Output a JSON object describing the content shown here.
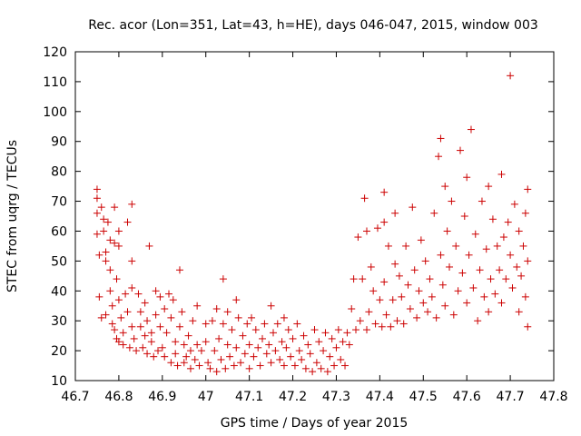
{
  "chart_data": {
    "type": "scatter",
    "title": "Rec. acor (Lon=351, Lat=43, h=HE), days 046-047, 2015, window 003",
    "xlabel": "GPS time / Days of year 2015",
    "ylabel": "STEC from uqrg / TECUs",
    "xlim": [
      46.7,
      47.8
    ],
    "ylim": [
      10,
      120
    ],
    "xticks": [
      "46.7",
      "46.8",
      "46.9",
      "47",
      "47.1",
      "47.2",
      "47.3",
      "47.4",
      "47.5",
      "47.6",
      "47.7",
      "47.8"
    ],
    "yticks": [
      "10",
      "20",
      "30",
      "40",
      "50",
      "60",
      "70",
      "80",
      "90",
      "100",
      "110",
      "120"
    ],
    "grid": false,
    "marker": "plus",
    "color": "#cc0000",
    "series": [
      {
        "points": [
          [
            46.75,
            74
          ],
          [
            46.75,
            71
          ],
          [
            46.75,
            66
          ],
          [
            46.75,
            59
          ],
          [
            46.755,
            52
          ],
          [
            46.755,
            38
          ],
          [
            46.76,
            31
          ],
          [
            46.76,
            68
          ],
          [
            46.765,
            64
          ],
          [
            46.765,
            60
          ],
          [
            46.77,
            53
          ],
          [
            46.77,
            50
          ],
          [
            46.77,
            32
          ],
          [
            46.775,
            63
          ],
          [
            46.78,
            57
          ],
          [
            46.78,
            47
          ],
          [
            46.78,
            40
          ],
          [
            46.785,
            35
          ],
          [
            46.785,
            29
          ],
          [
            46.79,
            68
          ],
          [
            46.79,
            56
          ],
          [
            46.79,
            27
          ],
          [
            46.795,
            44
          ],
          [
            46.795,
            24
          ],
          [
            46.8,
            60
          ],
          [
            46.8,
            55
          ],
          [
            46.8,
            37
          ],
          [
            46.8,
            23
          ],
          [
            46.805,
            31
          ],
          [
            46.81,
            26
          ],
          [
            46.81,
            22
          ],
          [
            46.815,
            39
          ],
          [
            46.82,
            63
          ],
          [
            46.82,
            33
          ],
          [
            46.825,
            21
          ],
          [
            46.83,
            69
          ],
          [
            46.83,
            50
          ],
          [
            46.83,
            41
          ],
          [
            46.83,
            28
          ],
          [
            46.835,
            24
          ],
          [
            46.84,
            20
          ],
          [
            46.845,
            39
          ],
          [
            46.85,
            33
          ],
          [
            46.85,
            28
          ],
          [
            46.855,
            21
          ],
          [
            46.86,
            36
          ],
          [
            46.86,
            25
          ],
          [
            46.865,
            30
          ],
          [
            46.865,
            19
          ],
          [
            46.87,
            55
          ],
          [
            46.875,
            26
          ],
          [
            46.875,
            23
          ],
          [
            46.88,
            18
          ],
          [
            46.885,
            40
          ],
          [
            46.885,
            32
          ],
          [
            46.89,
            20
          ],
          [
            46.895,
            38
          ],
          [
            46.895,
            28
          ],
          [
            46.9,
            21
          ],
          [
            46.905,
            34
          ],
          [
            46.905,
            18
          ],
          [
            46.91,
            26
          ],
          [
            46.915,
            39
          ],
          [
            46.92,
            31
          ],
          [
            46.92,
            16
          ],
          [
            46.925,
            37
          ],
          [
            46.93,
            23
          ],
          [
            46.93,
            19
          ],
          [
            46.935,
            15
          ],
          [
            46.94,
            47
          ],
          [
            46.94,
            28
          ],
          [
            46.945,
            33
          ],
          [
            46.95,
            22
          ],
          [
            46.95,
            16
          ],
          [
            46.955,
            18
          ],
          [
            46.96,
            25
          ],
          [
            46.965,
            20
          ],
          [
            46.965,
            14
          ],
          [
            46.97,
            30
          ],
          [
            46.975,
            17
          ],
          [
            46.98,
            35
          ],
          [
            46.98,
            22
          ],
          [
            46.985,
            15
          ],
          [
            46.99,
            20
          ],
          [
            47.0,
            29
          ],
          [
            47.0,
            23
          ],
          [
            47.005,
            16
          ],
          [
            47.01,
            14
          ],
          [
            47.015,
            30
          ],
          [
            47.02,
            20
          ],
          [
            47.025,
            34
          ],
          [
            47.025,
            13
          ],
          [
            47.03,
            24
          ],
          [
            47.035,
            17
          ],
          [
            47.04,
            29
          ],
          [
            47.04,
            44
          ],
          [
            47.045,
            14
          ],
          [
            47.05,
            33
          ],
          [
            47.05,
            22
          ],
          [
            47.055,
            18
          ],
          [
            47.06,
            27
          ],
          [
            47.065,
            15
          ],
          [
            47.07,
            37
          ],
          [
            47.07,
            21
          ],
          [
            47.075,
            31
          ],
          [
            47.08,
            16
          ],
          [
            47.085,
            25
          ],
          [
            47.09,
            19
          ],
          [
            47.095,
            29
          ],
          [
            47.1,
            22
          ],
          [
            47.1,
            14
          ],
          [
            47.105,
            31
          ],
          [
            47.11,
            18
          ],
          [
            47.115,
            27
          ],
          [
            47.12,
            21
          ],
          [
            47.125,
            15
          ],
          [
            47.13,
            24
          ],
          [
            47.135,
            29
          ],
          [
            47.14,
            19
          ],
          [
            47.145,
            22
          ],
          [
            47.15,
            35
          ],
          [
            47.15,
            16
          ],
          [
            47.155,
            26
          ],
          [
            47.16,
            20
          ],
          [
            47.165,
            29
          ],
          [
            47.17,
            17
          ],
          [
            47.175,
            23
          ],
          [
            47.18,
            31
          ],
          [
            47.18,
            15
          ],
          [
            47.185,
            21
          ],
          [
            47.19,
            27
          ],
          [
            47.195,
            18
          ],
          [
            47.2,
            24
          ],
          [
            47.205,
            15
          ],
          [
            47.21,
            29
          ],
          [
            47.215,
            20
          ],
          [
            47.22,
            17
          ],
          [
            47.225,
            25
          ],
          [
            47.23,
            14
          ],
          [
            47.235,
            22
          ],
          [
            47.24,
            19
          ],
          [
            47.245,
            13
          ],
          [
            47.25,
            27
          ],
          [
            47.255,
            16
          ],
          [
            47.26,
            23
          ],
          [
            47.265,
            14
          ],
          [
            47.27,
            20
          ],
          [
            47.275,
            26
          ],
          [
            47.28,
            13
          ],
          [
            47.285,
            18
          ],
          [
            47.29,
            24
          ],
          [
            47.295,
            15
          ],
          [
            47.3,
            21
          ],
          [
            47.305,
            27
          ],
          [
            47.31,
            17
          ],
          [
            47.315,
            23
          ],
          [
            47.32,
            15
          ],
          [
            47.325,
            26
          ],
          [
            47.33,
            22
          ],
          [
            47.335,
            34
          ],
          [
            47.34,
            44
          ],
          [
            47.345,
            27
          ],
          [
            47.35,
            58
          ],
          [
            47.355,
            30
          ],
          [
            47.36,
            44
          ],
          [
            47.365,
            71
          ],
          [
            47.37,
            60
          ],
          [
            47.37,
            27
          ],
          [
            47.375,
            33
          ],
          [
            47.38,
            48
          ],
          [
            47.385,
            40
          ],
          [
            47.39,
            29
          ],
          [
            47.395,
            61
          ],
          [
            47.4,
            37
          ],
          [
            47.405,
            28
          ],
          [
            47.41,
            73
          ],
          [
            47.41,
            63
          ],
          [
            47.41,
            43
          ],
          [
            47.415,
            32
          ],
          [
            47.42,
            55
          ],
          [
            47.425,
            28
          ],
          [
            47.43,
            37
          ],
          [
            47.435,
            66
          ],
          [
            47.435,
            49
          ],
          [
            47.44,
            30
          ],
          [
            47.445,
            45
          ],
          [
            47.45,
            38
          ],
          [
            47.455,
            29
          ],
          [
            47.46,
            55
          ],
          [
            47.465,
            42
          ],
          [
            47.47,
            34
          ],
          [
            47.475,
            68
          ],
          [
            47.48,
            47
          ],
          [
            47.485,
            31
          ],
          [
            47.49,
            40
          ],
          [
            47.495,
            57
          ],
          [
            47.5,
            36
          ],
          [
            47.505,
            50
          ],
          [
            47.51,
            33
          ],
          [
            47.515,
            44
          ],
          [
            47.52,
            38
          ],
          [
            47.525,
            66
          ],
          [
            47.53,
            31
          ],
          [
            47.535,
            85
          ],
          [
            47.54,
            91
          ],
          [
            47.54,
            52
          ],
          [
            47.545,
            42
          ],
          [
            47.55,
            75
          ],
          [
            47.55,
            35
          ],
          [
            47.555,
            60
          ],
          [
            47.56,
            48
          ],
          [
            47.565,
            70
          ],
          [
            47.57,
            32
          ],
          [
            47.575,
            55
          ],
          [
            47.58,
            40
          ],
          [
            47.585,
            87
          ],
          [
            47.59,
            46
          ],
          [
            47.595,
            65
          ],
          [
            47.6,
            78
          ],
          [
            47.6,
            36
          ],
          [
            47.605,
            52
          ],
          [
            47.61,
            94
          ],
          [
            47.615,
            41
          ],
          [
            47.62,
            59
          ],
          [
            47.625,
            30
          ],
          [
            47.63,
            47
          ],
          [
            47.635,
            70
          ],
          [
            47.64,
            38
          ],
          [
            47.645,
            54
          ],
          [
            47.65,
            75
          ],
          [
            47.65,
            33
          ],
          [
            47.655,
            44
          ],
          [
            47.66,
            64
          ],
          [
            47.665,
            39
          ],
          [
            47.67,
            55
          ],
          [
            47.675,
            47
          ],
          [
            47.68,
            79
          ],
          [
            47.68,
            36
          ],
          [
            47.685,
            58
          ],
          [
            47.69,
            44
          ],
          [
            47.695,
            63
          ],
          [
            47.7,
            112
          ],
          [
            47.7,
            52
          ],
          [
            47.705,
            41
          ],
          [
            47.71,
            69
          ],
          [
            47.715,
            48
          ],
          [
            47.72,
            33
          ],
          [
            47.72,
            60
          ],
          [
            47.725,
            45
          ],
          [
            47.73,
            55
          ],
          [
            47.735,
            38
          ],
          [
            47.735,
            66
          ],
          [
            47.74,
            74
          ],
          [
            47.74,
            50
          ],
          [
            47.74,
            28
          ]
        ]
      }
    ]
  }
}
